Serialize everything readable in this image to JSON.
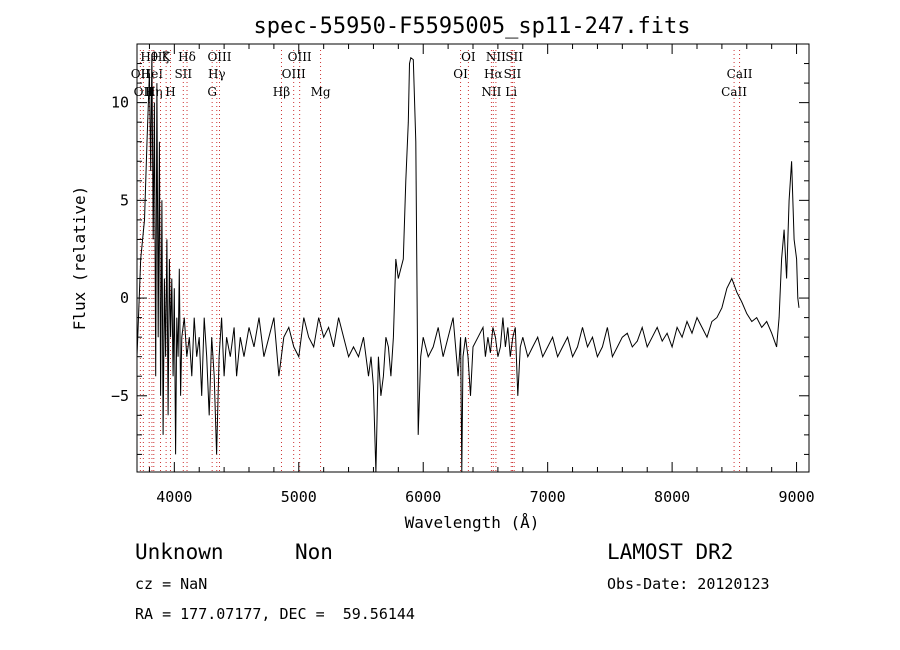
{
  "chart_data": {
    "type": "line",
    "title": "spec-55950-F5595005_sp11-247.fits",
    "xlabel": "Wavelength (Å)",
    "ylabel": "Flux (relative)",
    "xlim": [
      3700,
      9100
    ],
    "ylim": [
      -8.9,
      13.0
    ],
    "xticks": [
      4000,
      5000,
      6000,
      7000,
      8000,
      9000
    ],
    "yticks": [
      -5,
      0,
      5,
      10
    ],
    "ytick_labels": [
      "−5",
      "0",
      "5",
      "10"
    ],
    "grid": false,
    "legend": "none",
    "line_color": "#000000",
    "marker_color": "#cc3333",
    "series": [
      {
        "x": [
          3700,
          3730,
          3760,
          3780,
          3800,
          3810,
          3820,
          3830,
          3840,
          3850,
          3860,
          3870,
          3880,
          3890,
          3900,
          3910,
          3920,
          3930,
          3940,
          3950,
          3960,
          3970,
          3980,
          3990,
          4000,
          4010,
          4020,
          4030,
          4040,
          4050,
          4060,
          4080,
          4100,
          4120,
          4140,
          4160,
          4180,
          4200,
          4220,
          4240,
          4260,
          4280,
          4300,
          4320,
          4340,
          4360,
          4380,
          4400,
          4420,
          4450,
          4480,
          4500,
          4530,
          4560,
          4600,
          4640,
          4680,
          4720,
          4760,
          4800,
          4840,
          4880,
          4920,
          4960,
          5000,
          5040,
          5080,
          5120,
          5160,
          5200,
          5240,
          5280,
          5320,
          5360,
          5400,
          5440,
          5480,
          5520,
          5560,
          5580,
          5600,
          5620,
          5640,
          5660,
          5680,
          5700,
          5720,
          5740,
          5760,
          5780,
          5800,
          5820,
          5840,
          5860,
          5880,
          5890,
          5900,
          5920,
          5940,
          5960,
          5980,
          6000,
          6040,
          6080,
          6120,
          6160,
          6200,
          6240,
          6280,
          6300,
          6310,
          6320,
          6340,
          6360,
          6380,
          6400,
          6440,
          6480,
          6500,
          6520,
          6540,
          6560,
          6580,
          6600,
          6620,
          6640,
          6660,
          6680,
          6700,
          6720,
          6740,
          6760,
          6780,
          6800,
          6840,
          6880,
          6920,
          6960,
          7000,
          7040,
          7080,
          7120,
          7160,
          7200,
          7240,
          7280,
          7320,
          7360,
          7400,
          7440,
          7480,
          7520,
          7560,
          7600,
          7640,
          7680,
          7720,
          7760,
          7800,
          7840,
          7880,
          7920,
          7960,
          8000,
          8040,
          8080,
          8120,
          8160,
          8200,
          8240,
          8280,
          8320,
          8360,
          8400,
          8440,
          8480,
          8520,
          8560,
          8600,
          8640,
          8680,
          8720,
          8760,
          8800,
          8840,
          8860,
          8880,
          8900,
          8920,
          8940,
          8960,
          8980,
          9000,
          9010,
          9020
        ],
        "y": [
          -3,
          2,
          4,
          8,
          11.5,
          6.5,
          12.5,
          3,
          10,
          -4,
          11,
          -2,
          8,
          -5,
          5,
          -7,
          1,
          -3,
          3,
          -6,
          2,
          -2,
          1,
          -4,
          0.5,
          -8,
          -1,
          -3,
          1.5,
          -5,
          -2,
          -1,
          -3,
          -2,
          -4,
          -1,
          -3,
          -2,
          -5,
          -1,
          -3,
          -6,
          -2,
          -4,
          -8,
          -3,
          -1,
          -4,
          -2,
          -3,
          -1.5,
          -4,
          -2,
          -3,
          -1.5,
          -2.5,
          -1,
          -3,
          -2,
          -1,
          -4,
          -2,
          -1.5,
          -2.5,
          -3,
          -1,
          -2,
          -2.5,
          -1,
          -2,
          -1.5,
          -2.5,
          -1,
          -2,
          -3,
          -2.5,
          -3,
          -2,
          -4,
          -3,
          -4.5,
          -9,
          -3,
          -5,
          -4,
          -2,
          -2.5,
          -4,
          -2,
          2,
          1,
          1.5,
          2,
          6,
          9,
          12,
          12.3,
          12.2,
          8,
          -7,
          -3,
          -2,
          -3,
          -2.5,
          -1.5,
          -3,
          -2,
          -1,
          -4,
          -2,
          -9,
          -3,
          -2,
          -3,
          -5,
          -2.5,
          -2,
          -1.5,
          -3,
          -2,
          -2.8,
          -1.5,
          -2,
          -3,
          -2.5,
          -1,
          -2.5,
          -1.5,
          -3,
          -2,
          -1.5,
          -5,
          -2.5,
          -2,
          -3,
          -2.5,
          -2,
          -3,
          -2.5,
          -2,
          -3,
          -2.5,
          -2,
          -3,
          -2.5,
          -1.5,
          -2.5,
          -2,
          -3,
          -2.5,
          -1.5,
          -3,
          -2.5,
          -2,
          -1.8,
          -2.5,
          -2.2,
          -1.5,
          -2.5,
          -2,
          -1.5,
          -2.2,
          -1.8,
          -2.5,
          -1.5,
          -2,
          -1.2,
          -1.8,
          -1,
          -1.5,
          -2,
          -1.2,
          -1,
          -0.5,
          0.5,
          1,
          0.3,
          -0.2,
          -0.8,
          -1.2,
          -1,
          -1.5,
          -1.2,
          -1.8,
          -2.5,
          -1,
          2,
          3.5,
          1,
          5,
          7,
          3,
          2,
          0,
          -0.5
        ]
      }
    ],
    "line_markers": [
      {
        "x": 3727,
        "label": "OII",
        "row": 1
      },
      {
        "x": 3751,
        "label": "OII",
        "row": 2
      },
      {
        "x": 3798,
        "label": "Hθ",
        "row": 0
      },
      {
        "x": 3820,
        "label": "HeI",
        "row": 1
      },
      {
        "x": 3835,
        "label": "Hη",
        "row": 2
      },
      {
        "x": 3889,
        "label": "Hζ",
        "row": 0
      },
      {
        "x": 3934,
        "label": "K",
        "row": 0
      },
      {
        "x": 3969,
        "label": "H",
        "row": 2
      },
      {
        "x": 4072,
        "label": "SII",
        "row": 1
      },
      {
        "x": 4102,
        "label": "Hδ",
        "row": 0
      },
      {
        "x": 4304,
        "label": "G",
        "row": 2
      },
      {
        "x": 4341,
        "label": "Hγ",
        "row": 1
      },
      {
        "x": 4363,
        "label": "OIII",
        "row": 0
      },
      {
        "x": 4861,
        "label": "Hβ",
        "row": 2
      },
      {
        "x": 4959,
        "label": "OIII",
        "row": 1
      },
      {
        "x": 5007,
        "label": "OIII",
        "row": 0
      },
      {
        "x": 5175,
        "label": "Mg",
        "row": 2
      },
      {
        "x": 6300,
        "label": "OI",
        "row": 1
      },
      {
        "x": 6363,
        "label": "OI",
        "row": 0
      },
      {
        "x": 6548,
        "label": "NII",
        "row": 2
      },
      {
        "x": 6563,
        "label": "Hα",
        "row": 1
      },
      {
        "x": 6584,
        "label": "NII",
        "row": 0
      },
      {
        "x": 6707,
        "label": "Li",
        "row": 2
      },
      {
        "x": 6717,
        "label": "SII",
        "row": 1
      },
      {
        "x": 6731,
        "label": "SII",
        "row": 0
      },
      {
        "x": 8498,
        "label": "CaII",
        "row": 2
      },
      {
        "x": 8542,
        "label": "CaII",
        "row": 1
      }
    ]
  },
  "info": {
    "object_class": "Unknown",
    "object_subclass": "Non",
    "survey": "LAMOST DR2",
    "redshift": "cz = NaN",
    "obs_date": "Obs-Date: 20120123",
    "coordinates": "RA = 177.07177, DEC =  59.56144"
  }
}
